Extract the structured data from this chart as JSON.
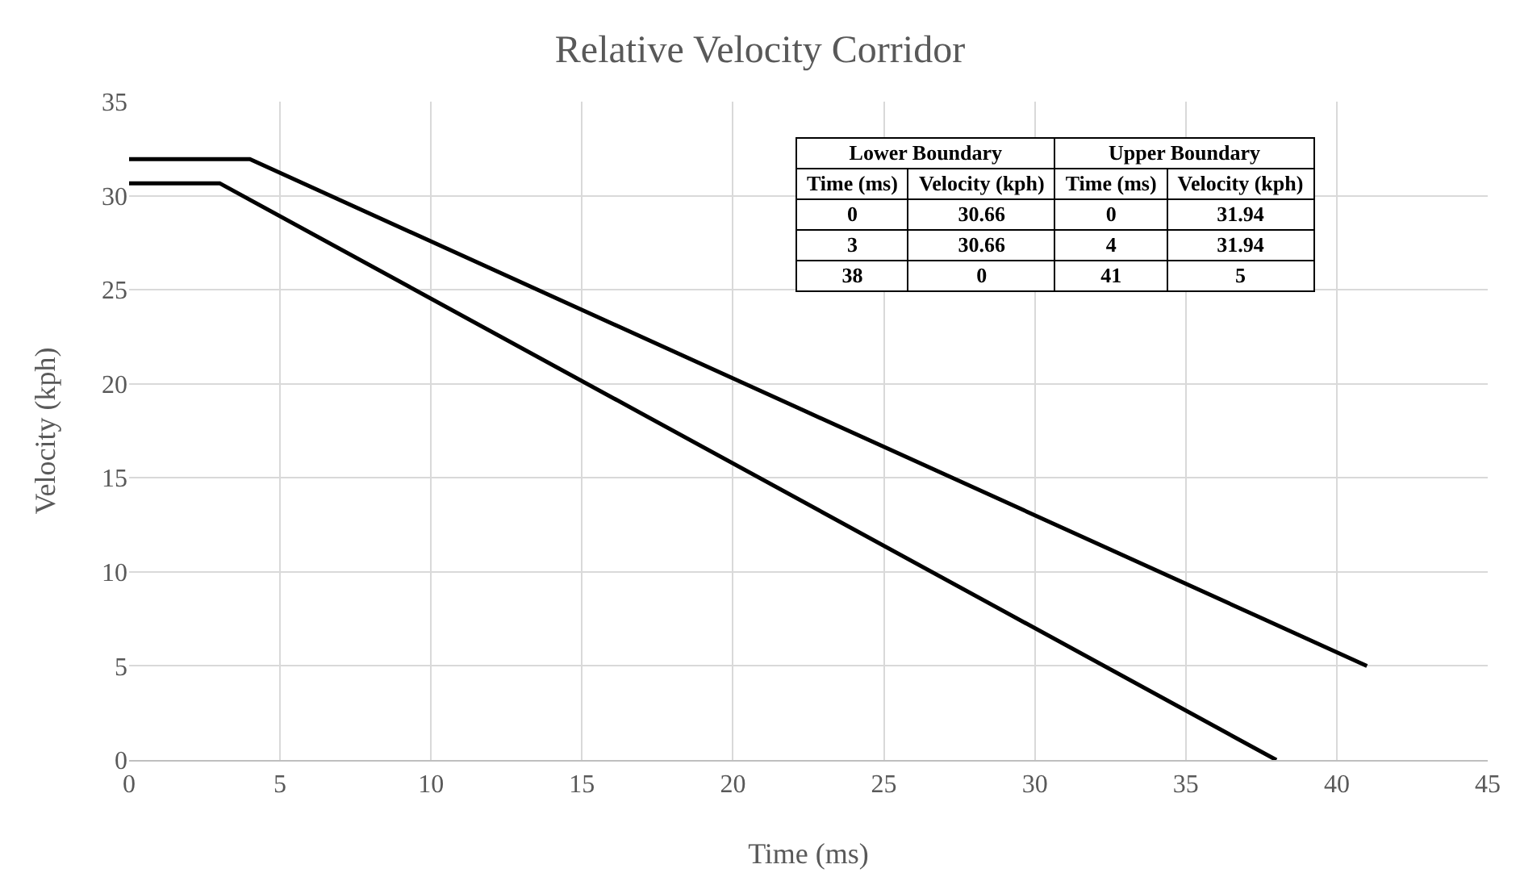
{
  "chart_data": {
    "type": "line",
    "title": "Relative Velocity Corridor",
    "xlabel": "Time (ms)",
    "ylabel": "Velocity (kph)",
    "series": [
      {
        "color": "#000000",
        "x": [
          0,
          3,
          38
        ],
        "values": [
          30.66,
          30.66,
          0
        ]
      },
      {
        "color": "#000000",
        "x": [
          0,
          4,
          41
        ],
        "values": [
          31.94,
          31.94,
          5
        ]
      }
    ],
    "annotations": [
      "Lower Boundary",
      "Upper Boundary",
      "Time (ms)",
      "Velocity (kph)",
      "Time (ms)",
      "Velocity (kph)",
      "0",
      "30.66",
      "0",
      "31.94",
      "3",
      "30.66",
      "4",
      "31.94",
      "38",
      "0",
      "41",
      "5"
    ],
    "xlim": [
      0,
      45
    ],
    "xticks": [
      0,
      5,
      10,
      15,
      20,
      25,
      30,
      35,
      40,
      45
    ],
    "ylim": [
      0,
      35
    ],
    "yticks": [
      0,
      5,
      10,
      15,
      20,
      25,
      30,
      35
    ],
    "grid": true,
    "legend": false,
    "marker": "none",
    "line_style": "solid"
  }
}
